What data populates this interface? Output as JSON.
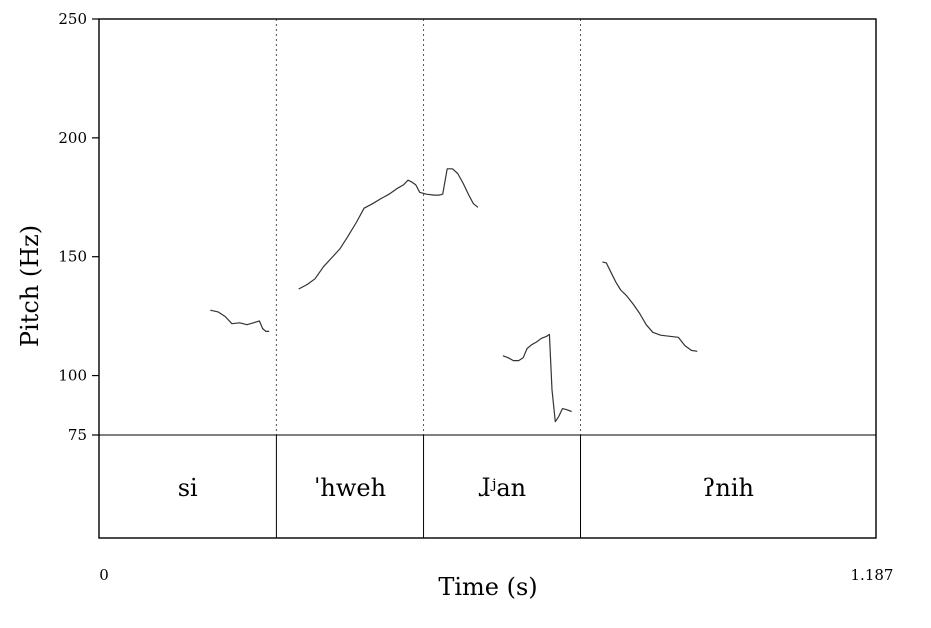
{
  "chart_data": {
    "type": "line",
    "xlabel": "Time (s)",
    "ylabel": "Pitch (Hz)",
    "xlim": [
      0,
      1.187
    ],
    "ylim": [
      75,
      250
    ],
    "x_tick_labels": [
      "0",
      "1.187"
    ],
    "y_tick_labels": [
      "250",
      "200",
      "150",
      "100",
      "75"
    ],
    "y_ticks": [
      250,
      200,
      150,
      100,
      75
    ],
    "grid": false,
    "boundaries": [
      0.271,
      0.4958,
      0.7356
    ],
    "segments": [
      {
        "label": "si",
        "start": 0,
        "end": 0.271
      },
      {
        "label": "ˈhweh",
        "start": 0.271,
        "end": 0.4958
      },
      {
        "label": "ɺʲan",
        "start": 0.4958,
        "end": 0.7356
      },
      {
        "label": "ʔnih",
        "start": 0.7356,
        "end": 1.187
      }
    ],
    "series": [
      {
        "points": [
          [
            0.17,
            127.5
          ],
          [
            0.182,
            126.8
          ],
          [
            0.193,
            124.8
          ],
          [
            0.203,
            121.8
          ],
          [
            0.215,
            122.2
          ],
          [
            0.226,
            121.4
          ],
          [
            0.236,
            122.2
          ],
          [
            0.245,
            123.0
          ],
          [
            0.25,
            119.8
          ],
          [
            0.255,
            118.6
          ],
          [
            0.26,
            118.6
          ]
        ]
      },
      {
        "points": [
          [
            0.305,
            136.4
          ],
          [
            0.318,
            138.3
          ],
          [
            0.33,
            140.7
          ],
          [
            0.343,
            145.8
          ],
          [
            0.355,
            149.4
          ],
          [
            0.368,
            153.3
          ],
          [
            0.38,
            158.4
          ],
          [
            0.393,
            164.4
          ],
          [
            0.405,
            170.4
          ],
          [
            0.418,
            172.3
          ],
          [
            0.43,
            174.3
          ],
          [
            0.443,
            176.3
          ],
          [
            0.455,
            178.6
          ],
          [
            0.465,
            180.2
          ],
          [
            0.472,
            182.2
          ],
          [
            0.478,
            181.4
          ],
          [
            0.484,
            180.2
          ],
          [
            0.49,
            177.1
          ],
          [
            0.5,
            176.3
          ],
          [
            0.512,
            175.9
          ],
          [
            0.52,
            175.9
          ],
          [
            0.525,
            176.3
          ],
          [
            0.532,
            187.0
          ],
          [
            0.54,
            187.0
          ],
          [
            0.548,
            185.0
          ],
          [
            0.556,
            181.0
          ],
          [
            0.565,
            175.9
          ],
          [
            0.572,
            172.3
          ],
          [
            0.579,
            170.8
          ]
        ]
      },
      {
        "points": [
          [
            0.617,
            108.3
          ],
          [
            0.625,
            107.5
          ],
          [
            0.633,
            106.3
          ],
          [
            0.641,
            106.3
          ],
          [
            0.648,
            107.5
          ],
          [
            0.654,
            111.4
          ],
          [
            0.661,
            113.0
          ],
          [
            0.668,
            114.1
          ],
          [
            0.676,
            115.7
          ],
          [
            0.684,
            116.5
          ],
          [
            0.688,
            117.3
          ],
          [
            0.692,
            94.0
          ],
          [
            0.697,
            80.6
          ],
          [
            0.702,
            82.6
          ],
          [
            0.708,
            86.1
          ],
          [
            0.714,
            85.7
          ],
          [
            0.722,
            84.9
          ]
        ]
      },
      {
        "points": [
          [
            0.769,
            147.8
          ],
          [
            0.775,
            147.4
          ],
          [
            0.782,
            143.5
          ],
          [
            0.79,
            139.1
          ],
          [
            0.797,
            136.0
          ],
          [
            0.806,
            133.6
          ],
          [
            0.816,
            130.1
          ],
          [
            0.826,
            126.1
          ],
          [
            0.836,
            121.4
          ],
          [
            0.846,
            118.2
          ],
          [
            0.858,
            117.0
          ],
          [
            0.872,
            116.5
          ],
          [
            0.885,
            116.1
          ],
          [
            0.895,
            112.6
          ],
          [
            0.905,
            110.6
          ],
          [
            0.914,
            110.2
          ]
        ]
      }
    ]
  }
}
